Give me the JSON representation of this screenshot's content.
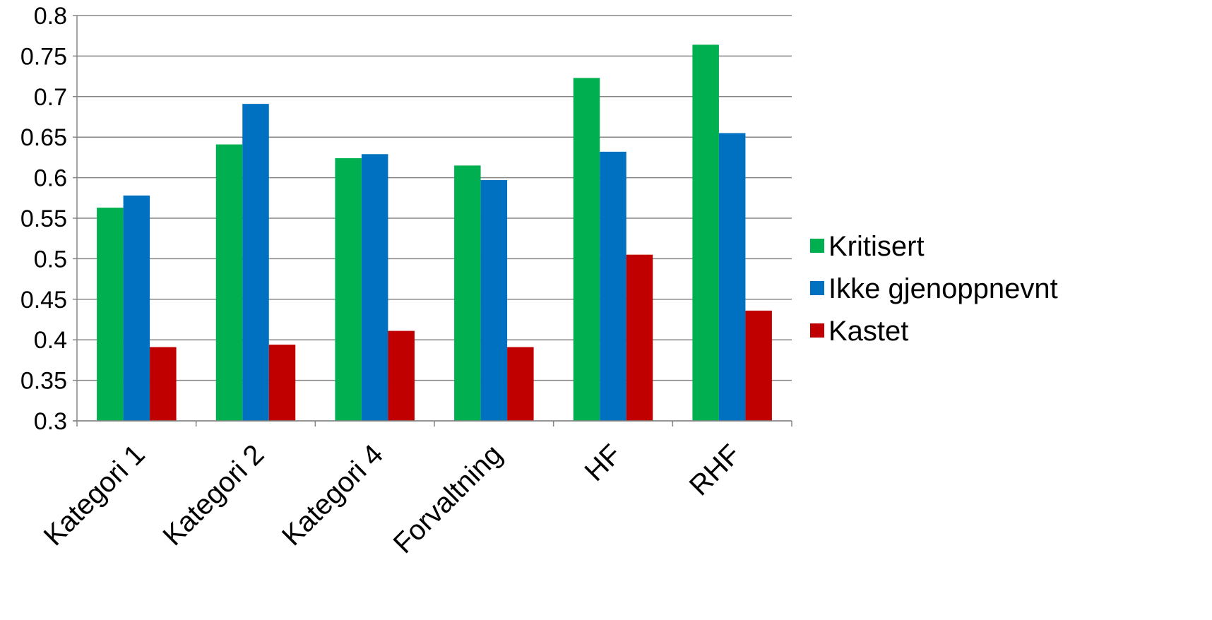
{
  "chart_data": {
    "type": "bar",
    "title": "",
    "xlabel": "",
    "ylabel": "",
    "categories": [
      "Kategori 1",
      "Kategori 2",
      "Kategori 4",
      "Forvaltning",
      "HF",
      "RHF"
    ],
    "series": [
      {
        "name": "Kritisert",
        "color": "#00B050",
        "values": [
          0.563,
          0.641,
          0.624,
          0.615,
          0.723,
          0.764
        ]
      },
      {
        "name": "Ikke gjenoppnevnt",
        "color": "#0070C0",
        "values": [
          0.578,
          0.691,
          0.629,
          0.597,
          0.632,
          0.655
        ]
      },
      {
        "name": "Kastet",
        "color": "#C00000",
        "values": [
          0.391,
          0.394,
          0.411,
          0.391,
          0.505,
          0.436
        ]
      }
    ],
    "ylim": [
      0.3,
      0.8
    ],
    "yticks": [
      "0.3",
      "0.35",
      "0.4",
      "0.45",
      "0.5",
      "0.55",
      "0.6",
      "0.65",
      "0.7",
      "0.75",
      "0.8"
    ],
    "grid": true,
    "legend_position": "right"
  }
}
